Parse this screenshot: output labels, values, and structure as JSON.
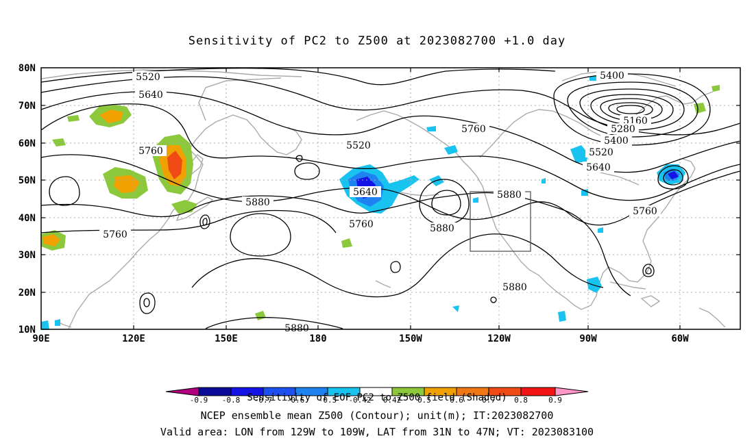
{
  "title": "Sensitivity of PC2 to Z500 at 2023082700 +1.0 day",
  "lat_labels": [
    "80N",
    "70N",
    "60N",
    "50N",
    "40N",
    "30N",
    "20N",
    "10N"
  ],
  "lon_labels": [
    "90E",
    "120E",
    "150E",
    "180",
    "150W",
    "120W",
    "90W",
    "60W"
  ],
  "contour_labels": [
    "5520",
    "5640",
    "5760",
    "5880",
    "5760",
    "5520",
    "5640",
    "5760",
    "5880",
    "5760",
    "5400",
    "5160",
    "5280",
    "5400",
    "5520",
    "5640",
    "5880",
    "5880",
    "5760",
    "5880"
  ],
  "colorbar": {
    "ticks": [
      "-0.9",
      "-0.8",
      "-0.7",
      "-0.6",
      "-0.5",
      "-0.42",
      "0.42",
      "0.5",
      "0.6",
      "0.7",
      "0.8",
      "0.9"
    ],
    "colors": [
      "#b0007f",
      "#0a0a9a",
      "#1414e6",
      "#1e4ff0",
      "#1e82f0",
      "#19c3f0",
      "#ffffff",
      "#8cc83c",
      "#f0a000",
      "#f07814",
      "#f04b14",
      "#f01414",
      "#ff96c8"
    ],
    "title": "Sensitivity of EOF PC2 to Z500 field (Shaded)"
  },
  "footer": {
    "line1": "NCEP ensemble mean Z500 (Contour); unit(m); IT:2023082700",
    "line2": "Valid area: LON from 129W to 109W, LAT from 31N to 47N; VT: 2023083100"
  },
  "colors": {
    "green": "#8cc83c",
    "orange": "#f0a000",
    "red": "#f04b14",
    "blue": "#1e82f0",
    "cyan": "#19c3f0",
    "land": "#aaaaaa",
    "grid": "#aaaaaa"
  }
}
